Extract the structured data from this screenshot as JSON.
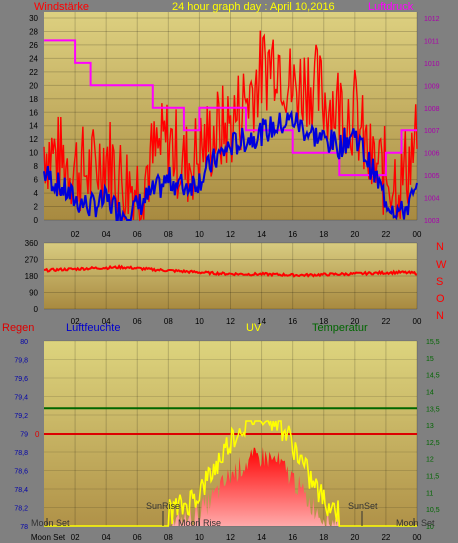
{
  "header": {
    "left_label": "Windstärke",
    "center_label": "24 hour graph day : April 10,2016",
    "right_label": "Luftdruck"
  },
  "wind_panel": {
    "left_ticks": [
      "0",
      "2",
      "4",
      "6",
      "8",
      "10",
      "12",
      "14",
      "16",
      "18",
      "20",
      "22",
      "24",
      "26",
      "28",
      "30"
    ],
    "right_ticks": [
      "1003",
      "1004",
      "1005",
      "1006",
      "1007",
      "1008",
      "1009",
      "1010",
      "1011",
      "1012"
    ],
    "x_ticks": [
      "02",
      "04",
      "06",
      "08",
      "10",
      "12",
      "14",
      "16",
      "18",
      "20",
      "22",
      "00"
    ]
  },
  "dir_panel": {
    "left_ticks": [
      "0",
      "90",
      "180",
      "270",
      "360"
    ],
    "x_ticks": [
      "02",
      "04",
      "06",
      "08",
      "10",
      "12",
      "14",
      "16",
      "18",
      "20",
      "22",
      "00"
    ],
    "compass_labels": [
      "N",
      "W",
      "S",
      "O",
      "N"
    ]
  },
  "lower_panel": {
    "labels": {
      "regen": "Regen",
      "luftfeuchte": "Luftfeuchte",
      "uv": "UV",
      "temperatur": "Temperatur"
    },
    "left_ticks": [
      "78",
      "78,2",
      "78,4",
      "78,6",
      "78,8",
      "79",
      "79,2",
      "79,4",
      "79,6",
      "79,8",
      "80"
    ],
    "right_ticks": [
      "10",
      "10,5",
      "11",
      "11,5",
      "12",
      "12,5",
      "13",
      "13,5",
      "14",
      "14,5",
      "15",
      "15,5"
    ],
    "rain_tick": "0",
    "x_ticks": [
      "Moon Set",
      "02",
      "04",
      "06",
      "08",
      "10",
      "12",
      "14",
      "16",
      "18",
      "20",
      "22",
      "00"
    ],
    "annotations": {
      "moon_set_left": "Moon Set",
      "sunrise": "SunRise",
      "moon_rise": "Moon Rise",
      "sunset": "SunSet",
      "moon_set_right": "Moon Set"
    }
  },
  "colors": {
    "wind": "#ff0000",
    "wind_avg": "#0000dd",
    "pressure": "#ff00ff",
    "direction": "#ff0000",
    "rain": "#dd0000",
    "temperature": "#006600",
    "uv": "#ffff00",
    "uv_fill": "#ff0000",
    "left_label_wind": "#ff0000",
    "center_label": "#ffff00",
    "right_label": "#ff00ff",
    "compass": "#ff0000",
    "tick_right_lower": "#006600",
    "tick_left_lower": "#0000aa"
  },
  "chart_data": [
    {
      "type": "line",
      "title": "24 hour graph day : April 10,2016",
      "ylabel": "Windstärke",
      "y2label": "Luftdruck",
      "ylim": [
        0,
        30
      ],
      "y2lim": [
        1003,
        1012
      ],
      "x_hours": [
        0,
        1,
        2,
        3,
        4,
        5,
        6,
        7,
        8,
        9,
        10,
        11,
        12,
        13,
        14,
        15,
        16,
        17,
        18,
        19,
        20,
        21,
        22,
        23,
        24
      ],
      "series": [
        {
          "name": "Windstärke",
          "role": "gust",
          "values": [
            11,
            9,
            8,
            7,
            10,
            6,
            5,
            9,
            12,
            8,
            10,
            13,
            14,
            18,
            22,
            25,
            19,
            21,
            18,
            17,
            16,
            8,
            7,
            6,
            12
          ]
        },
        {
          "name": "Windstärke",
          "role": "average",
          "values": [
            7,
            5,
            3,
            2,
            3,
            1,
            2,
            4,
            6,
            5,
            6,
            9,
            11,
            12,
            13,
            14,
            15,
            13,
            12,
            11,
            13,
            8,
            3,
            1,
            4
          ]
        },
        {
          "name": "Luftdruck",
          "role": "pressure",
          "values": [
            1011,
            1011,
            1010,
            1009,
            1009,
            1009,
            1009,
            1008,
            1008,
            1007,
            1008,
            1008,
            1008,
            1007,
            1007,
            1007,
            1006,
            1006,
            1006,
            1005,
            1005,
            1005,
            1006,
            1007,
            1007
          ]
        }
      ]
    },
    {
      "type": "line",
      "ylim": [
        0,
        360
      ],
      "x_hours": [
        0,
        1,
        2,
        3,
        4,
        5,
        6,
        7,
        8,
        9,
        10,
        11,
        12,
        13,
        14,
        15,
        16,
        17,
        18,
        19,
        20,
        21,
        22,
        23,
        24
      ],
      "series": [
        {
          "values": [
            210,
            215,
            218,
            222,
            225,
            228,
            222,
            215,
            210,
            205,
            200,
            195,
            192,
            190,
            190,
            188,
            185,
            185,
            188,
            190,
            192,
            195,
            198,
            200,
            195
          ]
        }
      ]
    },
    {
      "type": "area",
      "ylim": [
        78,
        80
      ],
      "y2lim": [
        10,
        15.5
      ],
      "x_hours": [
        0,
        1,
        2,
        3,
        4,
        5,
        6,
        7,
        8,
        9,
        10,
        11,
        12,
        13,
        14,
        15,
        16,
        17,
        18,
        19,
        20,
        21,
        22,
        23,
        24
      ],
      "series": [
        {
          "name": "Luftfeuchte",
          "values": []
        },
        {
          "name": "Regen",
          "values": [
            0,
            0,
            0,
            0,
            0,
            0,
            0,
            0,
            0,
            0,
            0,
            0,
            0,
            0,
            0,
            0,
            0,
            0,
            0,
            0,
            0,
            0,
            0,
            0,
            0
          ]
        },
        {
          "name": "Temperatur",
          "values": [
            13.5,
            13.5,
            13.5,
            13.5,
            13.5,
            13.5,
            13.5,
            13.5,
            13.5,
            13.5,
            13.5,
            13.5,
            13.5,
            13.5,
            13.5,
            13.5,
            13.5,
            13.5,
            13.5,
            13.5,
            13.5,
            13.5,
            13.5,
            13.5,
            13.5
          ]
        },
        {
          "name": "UV",
          "values": [
            0,
            0,
            0,
            0,
            0,
            0,
            0,
            0,
            0,
            0.3,
            1.0,
            2.2,
            3.6,
            4.5,
            5.0,
            4.6,
            3.4,
            1.8,
            0.6,
            0,
            0,
            0,
            0,
            0,
            0
          ]
        }
      ]
    }
  ]
}
